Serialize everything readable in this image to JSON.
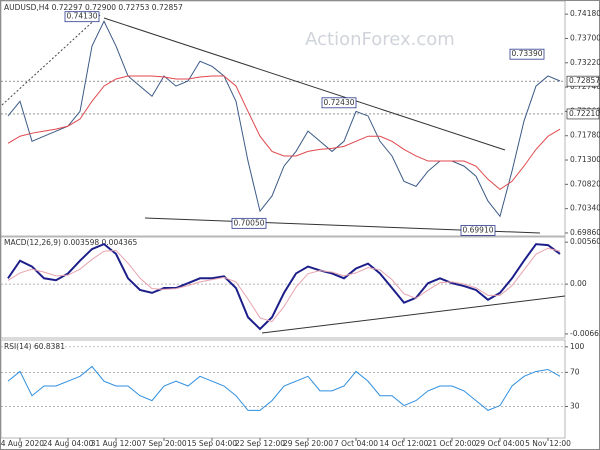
{
  "watermark": "ActionForex.com",
  "chart_data": [
    {
      "type": "line",
      "title": "AUDUSD,H4 0.72297 0.72900 0.72753 0.72857",
      "ylim": [
        0.698,
        0.7444
      ],
      "yticks": [
        {
          "value": 0.7418,
          "label": "0.74180"
        },
        {
          "value": 0.737,
          "label": "0.73700"
        },
        {
          "value": 0.7322,
          "label": "0.73220"
        },
        {
          "value": 0.7274,
          "label": "0.72740"
        },
        {
          "value": 0.7226,
          "label": "0.72260"
        },
        {
          "value": 0.7178,
          "label": "0.71780"
        },
        {
          "value": 0.713,
          "label": "0.71300"
        },
        {
          "value": 0.7082,
          "label": "0.70820"
        },
        {
          "value": 0.7034,
          "label": "0.70340"
        },
        {
          "value": 0.6986,
          "label": "0.69860"
        }
      ],
      "levels": [
        {
          "value": 0.72857,
          "label": "0.72857"
        },
        {
          "value": 0.7221,
          "label": "0.72210"
        }
      ],
      "annotations": [
        {
          "value": 0.7413,
          "label": "0.74130"
        },
        {
          "value": 0.7339,
          "label": "0.73390"
        },
        {
          "value": 0.7243,
          "label": "0.72430"
        },
        {
          "value": 0.7005,
          "label": "0.70050"
        },
        {
          "value": 0.6991,
          "label": "0.69910"
        }
      ],
      "series": [
        {
          "color": "#3b5a86",
          "values": [
            0.7217,
            0.7246,
            0.7167,
            0.7177,
            0.7187,
            0.7197,
            0.7226,
            0.7355,
            0.7404,
            0.7355,
            0.7296,
            0.7276,
            0.7256,
            0.7296,
            0.7276,
            0.7286,
            0.7325,
            0.7315,
            0.7296,
            0.7246,
            0.7128,
            0.7029,
            0.7059,
            0.7118,
            0.7147,
            0.7187,
            0.7167,
            0.7147,
            0.7167,
            0.7226,
            0.7217,
            0.7167,
            0.7138,
            0.7088,
            0.7078,
            0.7108,
            0.7128,
            0.7128,
            0.7118,
            0.7098,
            0.7049,
            0.7019,
            0.7108,
            0.7207,
            0.7276,
            0.7296,
            0.7286
          ]
        },
        {
          "color": "#e0474c",
          "values": [
            0.7163,
            0.7177,
            0.7183,
            0.7187,
            0.7191,
            0.7197,
            0.7211,
            0.7246,
            0.7276,
            0.729,
            0.7296,
            0.7296,
            0.7296,
            0.7294,
            0.729,
            0.729,
            0.7294,
            0.7296,
            0.7296,
            0.7276,
            0.7226,
            0.7177,
            0.7147,
            0.7138,
            0.7138,
            0.7147,
            0.7151,
            0.7153,
            0.7157,
            0.7167,
            0.7177,
            0.7177,
            0.7167,
            0.7151,
            0.7138,
            0.7128,
            0.7128,
            0.7128,
            0.7128,
            0.7118,
            0.7092,
            0.7072,
            0.7088,
            0.7118,
            0.7151,
            0.7177,
            0.7191
          ]
        }
      ]
    },
    {
      "type": "line",
      "title": "MACD(12,26,9) 0.003598 0.004365",
      "ylim": [
        -0.0072,
        0.0063
      ],
      "yticks": [
        0.005607,
        {
          "value": 0,
          "label": "0.00"
        },
        -0.006656
      ],
      "series": [
        {
          "color": "#1c1f8a",
          "values": [
            0.00078,
            0.00313,
            0.00235,
            0.00078,
            0.00052,
            0.00143,
            0.00313,
            0.00469,
            0.00535,
            0.00404,
            0.00078,
            -0.00078,
            -0.00117,
            -0.00052,
            -0.00052,
            0.00013,
            0.00078,
            0.00078,
            0.00104,
            -0.00052,
            -0.00443,
            -0.006,
            -0.00443,
            -0.00117,
            0.00143,
            0.00235,
            0.00183,
            0.00143,
            0.00078,
            0.00209,
            0.00274,
            0.00143,
            -0.00052,
            -0.00248,
            -0.00183,
            0.00013,
            0.00078,
            0.00013,
            -0.00026,
            -0.00078,
            -0.00209,
            -0.00117,
            0.00078,
            0.00313,
            0.00535,
            0.00522,
            0.00404
          ]
        },
        {
          "color": "#e8a3ad",
          "values": [
            0.0005,
            0.0015,
            0.002,
            0.0016,
            0.0011,
            0.0012,
            0.002,
            0.0033,
            0.0044,
            0.0045,
            0.0028,
            0.0008,
            -0.0006,
            -0.0007,
            -0.0006,
            -0.0002,
            0.0003,
            0.0006,
            0.0009,
            0.0003,
            -0.002,
            -0.0045,
            -0.005,
            -0.003,
            -0.0004,
            0.0014,
            0.0018,
            0.0016,
            0.0011,
            0.0015,
            0.0022,
            0.0019,
            0.0006,
            -0.0013,
            -0.0019,
            -0.0008,
            0.0002,
            0.0003,
            0,
            -0.0005,
            -0.0015,
            -0.0015,
            -0.0002,
            0.0019,
            0.004,
            0.0048,
            0.0044
          ]
        }
      ]
    },
    {
      "type": "line",
      "title": "RSI(14) 60.8381",
      "ylim": [
        -7,
        108
      ],
      "yticks": [
        100,
        70,
        30
      ],
      "grid": true,
      "categories": [
        null,
        "14 Aug 2020",
        null,
        null,
        null,
        "24 Aug 04:00",
        null,
        null,
        null,
        "31 Aug 12:00",
        null,
        null,
        null,
        "7 Sep 20:00",
        null,
        null,
        null,
        "15 Sep 04:00",
        null,
        null,
        null,
        "22 Sep 12:00",
        null,
        null,
        null,
        "29 Sep 20:00",
        null,
        null,
        null,
        "7 Oct 04:00",
        null,
        null,
        null,
        "14 Oct 12:00",
        null,
        null,
        null,
        "21 Oct 20:00",
        null,
        null,
        null,
        "29 Oct 04:00",
        null,
        null,
        null,
        "5 Nov 12:00",
        null
      ],
      "series": [
        {
          "color": "#2f8fe0",
          "values": [
            59.7,
            71.1,
            42.6,
            54.0,
            54.0,
            59.7,
            65.4,
            76.9,
            59.7,
            54.0,
            54.0,
            42.6,
            36.9,
            54.0,
            59.7,
            54.0,
            65.4,
            59.7,
            54.0,
            42.6,
            25.4,
            25.4,
            36.9,
            54.0,
            59.7,
            65.4,
            48.3,
            48.3,
            54.0,
            71.1,
            59.7,
            42.6,
            42.6,
            31.1,
            36.9,
            48.3,
            54.0,
            54.0,
            48.3,
            36.9,
            25.4,
            31.1,
            54.0,
            65.4,
            71.1,
            73.4,
            65.4
          ]
        }
      ]
    }
  ]
}
